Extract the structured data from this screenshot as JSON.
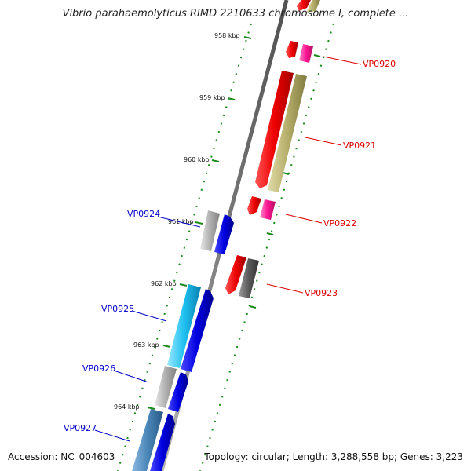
{
  "title": "Vibrio parahaemolyticus RIMD 2210633 chromosome I, complete ...",
  "footer": {
    "accession": "Accession: NC_004603",
    "summary": "Topology: circular; Length: 3,288,558 bp; Genes: 3,223"
  },
  "ticks": [
    "958 kbp",
    "959 kbp",
    "960 kbp",
    "961 kbp",
    "962 kbp",
    "963 kbp",
    "964 kbp"
  ],
  "genes": [
    {
      "name": "VP0920",
      "color": "#dd0000",
      "side": "right"
    },
    {
      "name": "VP0921",
      "color": "#dd0000",
      "side": "right"
    },
    {
      "name": "VP0922",
      "color": "#dd0000",
      "side": "right"
    },
    {
      "name": "VP0923",
      "color": "#dd0000",
      "side": "right"
    },
    {
      "name": "VP0924",
      "color": "#0000cc",
      "side": "left"
    },
    {
      "name": "VP0925",
      "color": "#0000cc",
      "side": "left"
    },
    {
      "name": "VP0926",
      "color": "#0000cc",
      "side": "left"
    },
    {
      "name": "VP0927",
      "color": "#0000cc",
      "side": "left"
    }
  ],
  "colors": {
    "backbone": "#8a8a8a",
    "tick": "#1a8a1a",
    "red_feature": "#ee0000",
    "pink_feature": "#ff1493",
    "olive_feature": "#b5ae6a",
    "blue_feature": "#0000e0",
    "cyan_feature": "#1ec0f0",
    "grey_feature": "#b0b0b0",
    "dark_grey_feature": "#5a5a5a",
    "steel_feature": "#4a86b8"
  }
}
